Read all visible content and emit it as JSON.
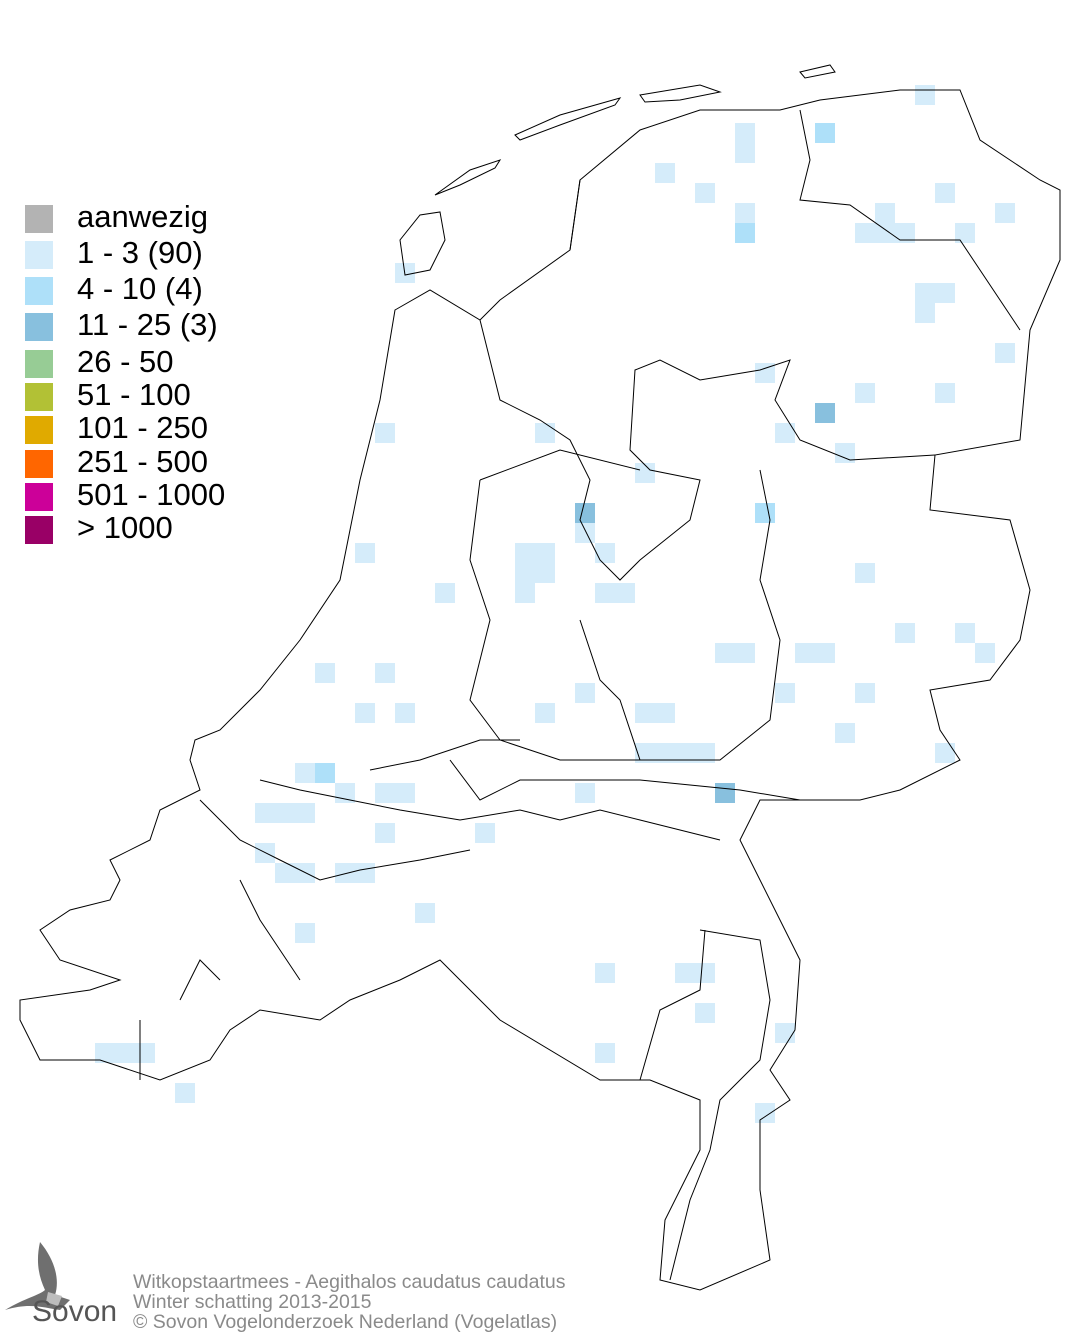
{
  "legend": [
    {
      "label": "aanwezig",
      "color": "#b3b3b3"
    },
    {
      "label": "1 - 3 (90)",
      "color": "#d5ecfa"
    },
    {
      "label": "4 - 10 (4)",
      "color": "#aee0f9"
    },
    {
      "label": "11 - 25 (3)",
      "color": "#88c0de"
    },
    {
      "label": "26 - 50",
      "color": "#97cc95"
    },
    {
      "label": "51 - 100",
      "color": "#b2c135"
    },
    {
      "label": "101 - 250",
      "color": "#e0aa00"
    },
    {
      "label": "251 - 500",
      "color": "#ff6600"
    },
    {
      "label": "501 - 1000",
      "color": "#cc0099"
    },
    {
      "label": "> 1000",
      "color": "#990066"
    }
  ],
  "footer": {
    "species": "Witkopstaartmees - Aegithalos caudatus caudatus",
    "period": "Winter schatting 2013-2015",
    "copyright": "© Sovon Vogelonderzoek Nederland (Vogelatlas)"
  },
  "logo": {
    "text": "Sovon",
    "icon": "swallow-icon"
  }
}
